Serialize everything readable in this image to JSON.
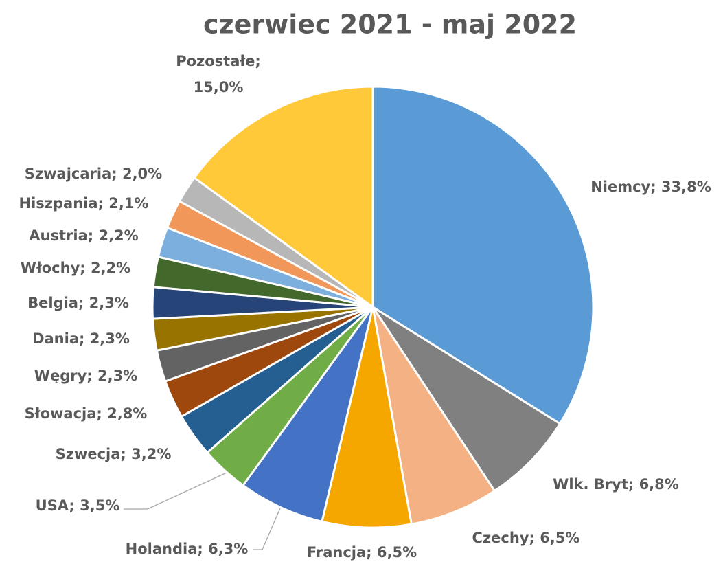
{
  "chart_data": {
    "type": "pie",
    "title": "czerwiec  2021 - maj 2022",
    "values": [
      33.8,
      6.8,
      6.5,
      6.5,
      6.3,
      3.5,
      3.2,
      2.8,
      2.3,
      2.3,
      2.3,
      2.2,
      2.2,
      2.1,
      2.0,
      15.0
    ],
    "value_labels": [
      "Niemcy; 33,8%",
      "Wlk. Bryt; 6,8%",
      "Czechy; 6,5%",
      "Francja; 6,5%",
      "Holandia; 6,3%",
      "USA; 3,5%",
      "Szwecja; 3,2%",
      "Słowacja; 2,8%",
      "Węgry; 2,3%",
      "Dania; 2,3%",
      "Belgia; 2,3%",
      "Włochy; 2,2%",
      "Austria; 2,2%",
      "Hiszpania; 2,1%",
      "Szwajcaria; 2,0%",
      "Pozostałe; 15,0%"
    ],
    "colors": [
      "#5b9bd5",
      "#808080",
      "#f4b183",
      "#f5a700",
      "#4472c4",
      "#70ad47",
      "#255e91",
      "#9e480e",
      "#636363",
      "#997300",
      "#264478",
      "#43682b",
      "#7cafdd",
      "#f1975a",
      "#b7b7b7",
      "#ffc93a"
    ]
  }
}
